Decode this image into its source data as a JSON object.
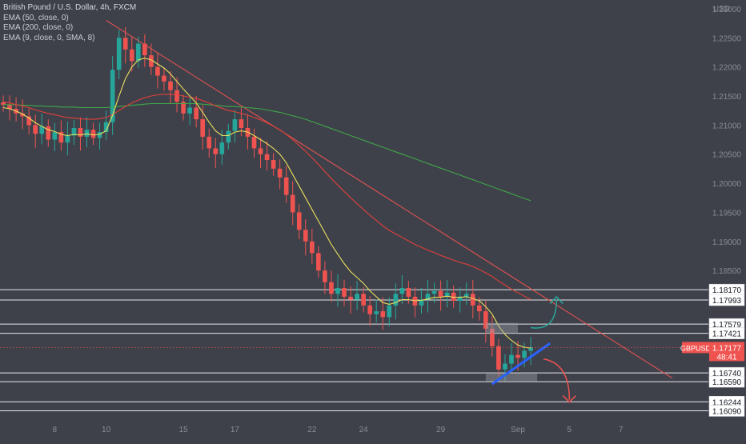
{
  "chart_data": {
    "type": "candlestick",
    "title": "British Pound / U.S. Dollar, 4h, FXCM",
    "indicators": [
      "EMA (50, close, 0)",
      "EMA (200, close, 0)",
      "EMA (9, close, 0, SMA, 8)"
    ],
    "currency": "USD",
    "symbol": "GBPUSD",
    "last_price": "1.17177",
    "countdown": "48:41",
    "ylim": [
      1.16,
      1.2315
    ],
    "y_ticks": [
      "1.23000",
      "1.22500",
      "1.22000",
      "1.21500",
      "1.21000",
      "1.20500",
      "1.20000",
      "1.19500",
      "1.19000",
      "1.18500"
    ],
    "y_tick_values": [
      1.23,
      1.225,
      1.22,
      1.215,
      1.21,
      1.205,
      1.2,
      1.195,
      1.19,
      1.185
    ],
    "x_ticks": [
      "8",
      "10",
      "15",
      "17",
      "22",
      "24",
      "29",
      "Sep",
      "5",
      "7"
    ],
    "x_tick_index": [
      8,
      16,
      28,
      36,
      48,
      56,
      68,
      80,
      88,
      96
    ],
    "n_bars": 106,
    "levels": [
      1.1817,
      1.17993,
      1.17579,
      1.17421,
      1.1674,
      1.1659,
      1.16244,
      1.1609
    ],
    "level_labels": [
      "1.18170",
      "1.17993",
      "1.17579",
      "1.17421",
      "1.16740",
      "1.16590",
      "1.16244",
      "1.16090"
    ],
    "closes": [
      1.2135,
      1.2128,
      1.212,
      1.2115,
      1.21,
      1.2085,
      1.2098,
      1.2075,
      1.2088,
      1.207,
      1.2082,
      1.2095,
      1.208,
      1.2092,
      1.2078,
      1.2088,
      1.2105,
      1.2195,
      1.225,
      1.223,
      1.221,
      1.224,
      1.222,
      1.22,
      1.2185,
      1.2175,
      1.216,
      1.214,
      1.212,
      1.213,
      1.211,
      1.208,
      1.206,
      1.205,
      1.207,
      1.209,
      1.211,
      1.2095,
      1.208,
      1.206,
      1.205,
      1.204,
      1.2025,
      1.201,
      1.198,
      1.195,
      1.192,
      1.19,
      1.188,
      1.185,
      1.183,
      1.181,
      1.182,
      1.1805,
      1.18,
      1.181,
      1.179,
      1.1775,
      1.178,
      1.177,
      1.179,
      1.181,
      1.182,
      1.1805,
      1.179,
      1.18,
      1.181,
      1.1815,
      1.1805,
      1.1812,
      1.1798,
      1.1805,
      1.181,
      1.179,
      1.178,
      1.175,
      1.172,
      1.168,
      1.169,
      1.1705,
      1.17,
      1.1712,
      1.1718
    ],
    "ema50": [
      1.214,
      1.2138,
      1.2135,
      1.2133,
      1.213,
      1.2126,
      1.2123,
      1.212,
      1.2118,
      1.2115,
      1.2113,
      1.2112,
      1.2111,
      1.211,
      1.211,
      1.2111,
      1.2113,
      1.2118,
      1.2125,
      1.2132,
      1.2138,
      1.2143,
      1.2147,
      1.215,
      1.2152,
      1.2153,
      1.2153,
      1.2152,
      1.215,
      1.2148,
      1.2146,
      1.2142,
      1.2138,
      1.2133,
      1.2129,
      1.2125,
      1.2123,
      1.212,
      1.2117,
      1.2113,
      1.2109,
      1.2104,
      1.2098,
      1.2092,
      1.2084,
      1.2075,
      1.2065,
      1.2055,
      1.2044,
      1.2032,
      1.202,
      1.2008,
      1.1997,
      1.1986,
      1.1975,
      1.1965,
      1.1955,
      1.1945,
      1.1936,
      1.1927,
      1.1919,
      1.1913,
      1.1907,
      1.1901,
      1.1895,
      1.189,
      1.1885,
      1.1881,
      1.1876,
      1.1872,
      1.1868,
      1.1864,
      1.1861,
      1.1857,
      1.1852,
      1.1846,
      1.184,
      1.1832,
      1.1825,
      1.1818,
      1.1812,
      1.1806,
      1.18
    ],
    "ema200": [
      1.2135,
      1.2135,
      1.2135,
      1.2134,
      1.2134,
      1.2133,
      1.2133,
      1.2132,
      1.2132,
      1.2131,
      1.2131,
      1.2131,
      1.213,
      1.213,
      1.213,
      1.213,
      1.213,
      1.2131,
      1.2132,
      1.2133,
      1.2134,
      1.2135,
      1.2136,
      1.2137,
      1.2137,
      1.2137,
      1.2137,
      1.2137,
      1.2137,
      1.2137,
      1.2137,
      1.2136,
      1.2135,
      1.2134,
      1.2133,
      1.2132,
      1.2132,
      1.2131,
      1.213,
      1.2129,
      1.2128,
      1.2126,
      1.2124,
      1.2122,
      1.2119,
      1.2116,
      1.2113,
      1.211,
      1.2106,
      1.2102,
      1.2098,
      1.2094,
      1.209,
      1.2086,
      1.2082,
      1.2078,
      1.2074,
      1.207,
      1.2066,
      1.2062,
      1.2058,
      1.2054,
      1.205,
      1.2046,
      1.2042,
      1.2038,
      1.2034,
      1.203,
      1.2026,
      1.2022,
      1.2018,
      1.2014,
      1.201,
      1.2006,
      1.2002,
      1.1998,
      1.1994,
      1.199,
      1.1986,
      1.1982,
      1.1978,
      1.1974,
      1.197
    ],
    "ema9": [
      1.213,
      1.2128,
      1.2124,
      1.2119,
      1.2112,
      1.2104,
      1.2098,
      1.2092,
      1.2089,
      1.2084,
      1.2082,
      1.2084,
      1.2083,
      1.2085,
      1.2083,
      1.2084,
      1.209,
      1.2117,
      1.215,
      1.218,
      1.22,
      1.2212,
      1.2215,
      1.2212,
      1.2205,
      1.2198,
      1.2188,
      1.2175,
      1.2162,
      1.215,
      1.2138,
      1.2122,
      1.2105,
      1.209,
      1.2082,
      1.2082,
      1.2088,
      1.209,
      1.2088,
      1.2082,
      1.2075,
      1.2068,
      1.206,
      1.205,
      1.2035,
      1.2015,
      1.1995,
      1.1975,
      1.1955,
      1.1935,
      1.1915,
      1.1895,
      1.1878,
      1.1862,
      1.1848,
      1.1838,
      1.1828,
      1.1815,
      1.1805,
      1.1795,
      1.1792,
      1.1795,
      1.18,
      1.18,
      1.1798,
      1.1799,
      1.1801,
      1.1804,
      1.1804,
      1.1806,
      1.1804,
      1.1804,
      1.1805,
      1.1802,
      1.1798,
      1.1788,
      1.1775,
      1.1755,
      1.174,
      1.173,
      1.1722,
      1.1718,
      1.1717
    ],
    "colors": {
      "up": "#26a69a",
      "down": "#ef5350",
      "ema9": "#e9df5c",
      "ema50": "#e0403a",
      "ema200": "#3fa648",
      "trend": "#ef5350",
      "blue": "#2962ff",
      "arrow_up": "#26a69a",
      "arrow_down": "#ef5350",
      "price_tag": "#ef5350"
    }
  }
}
